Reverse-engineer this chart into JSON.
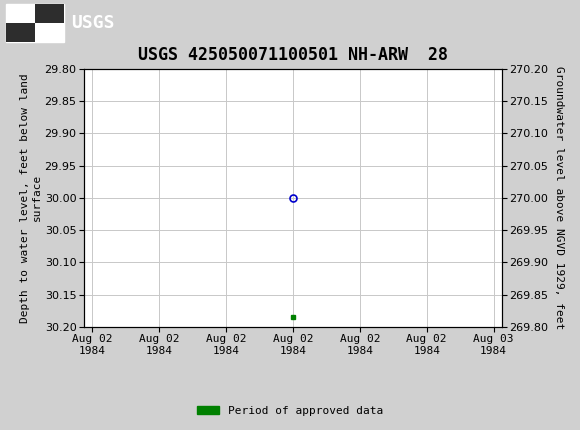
{
  "title": "USGS 425050071100501 NH-ARW  28",
  "ylabel_left": "Depth to water level, feet below land\nsurface",
  "ylabel_right": "Groundwater level above NGVD 1929, feet",
  "ylim_left": [
    30.2,
    29.8
  ],
  "ylim_right": [
    269.8,
    270.2
  ],
  "yticks_left": [
    29.8,
    29.85,
    29.9,
    29.95,
    30.0,
    30.05,
    30.1,
    30.15,
    30.2
  ],
  "yticks_right": [
    270.2,
    270.15,
    270.1,
    270.05,
    270.0,
    269.95,
    269.9,
    269.85,
    269.8
  ],
  "data_point_depth": 30.0,
  "approved_bar_depth": 30.185,
  "header_color": "#1a6b3c",
  "grid_color": "#c8c8c8",
  "plot_bg_color": "#ffffff",
  "outer_bg_color": "#d0d0d0",
  "point_color": "#0000cc",
  "approved_color": "#008000",
  "legend_label": "Period of approved data",
  "font_family": "monospace",
  "title_fontsize": 12,
  "axis_fontsize": 8,
  "tick_fontsize": 8
}
